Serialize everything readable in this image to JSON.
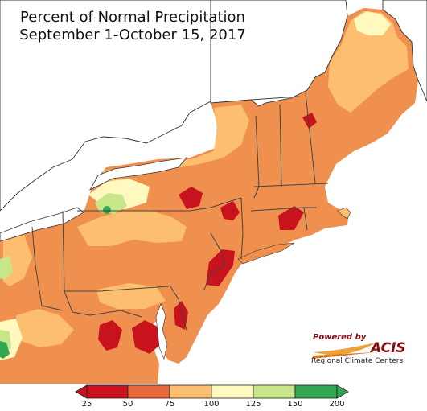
{
  "title": {
    "line1": "Percent of Normal Precipitation",
    "line2": "September 1-October 15, 2017"
  },
  "logo": {
    "powered_by": "Powered by",
    "brand": "ACIS",
    "subtitle": "Regional Climate Centers"
  },
  "legend": {
    "bins": [
      {
        "color": "#c8131e"
      },
      {
        "color": "#e8683a"
      },
      {
        "color": "#fdbf6f"
      },
      {
        "color": "#fff8bf"
      },
      {
        "color": "#c7e68a"
      },
      {
        "color": "#33a652"
      }
    ],
    "ticks": [
      "25",
      "50",
      "75",
      "100",
      "125",
      "150",
      "200"
    ]
  },
  "colors": {
    "water": "#ffffff",
    "boundary": "#444444",
    "county_line": "#b98a5a"
  }
}
